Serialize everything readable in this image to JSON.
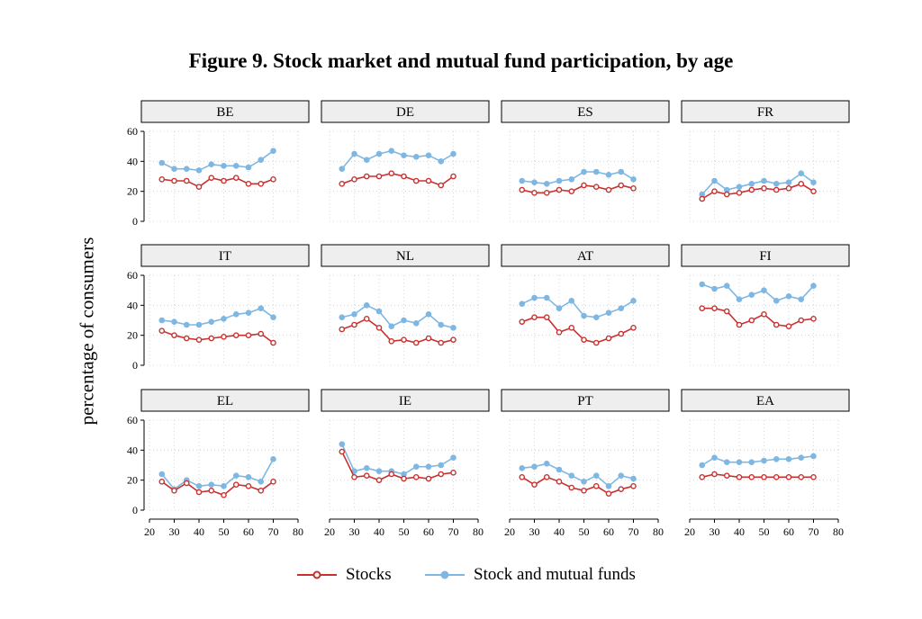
{
  "title": "Figure 9. Stock market and mutual fund participation, by age",
  "colors": {
    "stocks": "#c8312f",
    "funds": "#7fb7e3",
    "panel_header_bg": "#eeeeee",
    "grid": "#cccccc"
  },
  "chart_data": {
    "type": "line",
    "title": "Figure 9. Stock market and mutual fund participation, by age",
    "ylabel": "percentage of consumers",
    "xlabel": "",
    "xlim": [
      20,
      80
    ],
    "ylim": [
      0,
      60
    ],
    "x_ticks": [
      20,
      30,
      40,
      50,
      60,
      70,
      80
    ],
    "y_ticks": [
      0,
      20,
      40,
      60
    ],
    "grid": true,
    "legend": "bottom",
    "x": [
      25,
      30,
      35,
      40,
      45,
      50,
      55,
      60,
      65,
      70
    ],
    "series_names": [
      "Stocks",
      "Stock and mutual funds"
    ],
    "panels": [
      {
        "name": "BE",
        "stocks": [
          28,
          27,
          27,
          23,
          29,
          27,
          29,
          25,
          25,
          28
        ],
        "funds": [
          39,
          35,
          35,
          34,
          38,
          37,
          37,
          36,
          41,
          47
        ]
      },
      {
        "name": "DE",
        "stocks": [
          25,
          28,
          30,
          30,
          32,
          30,
          27,
          27,
          24,
          30
        ],
        "funds": [
          35,
          45,
          41,
          45,
          47,
          44,
          43,
          44,
          40,
          45
        ]
      },
      {
        "name": "ES",
        "stocks": [
          21,
          19,
          19,
          21,
          20,
          24,
          23,
          21,
          24,
          22
        ],
        "funds": [
          27,
          26,
          25,
          27,
          28,
          33,
          33,
          31,
          33,
          28
        ]
      },
      {
        "name": "FR",
        "stocks": [
          15,
          20,
          18,
          19,
          21,
          22,
          21,
          22,
          25,
          20
        ],
        "funds": [
          18,
          27,
          21,
          23,
          25,
          27,
          25,
          26,
          32,
          26
        ]
      },
      {
        "name": "IT",
        "stocks": [
          23,
          20,
          18,
          17,
          18,
          19,
          20,
          20,
          21,
          15
        ],
        "funds": [
          30,
          29,
          27,
          27,
          29,
          31,
          34,
          35,
          38,
          32
        ]
      },
      {
        "name": "NL",
        "stocks": [
          24,
          27,
          31,
          25,
          16,
          17,
          15,
          18,
          15,
          17
        ],
        "funds": [
          32,
          34,
          40,
          36,
          26,
          30,
          28,
          34,
          27,
          25
        ]
      },
      {
        "name": "AT",
        "stocks": [
          29,
          32,
          32,
          22,
          25,
          17,
          15,
          18,
          21,
          25
        ],
        "funds": [
          41,
          45,
          45,
          38,
          43,
          33,
          32,
          35,
          38,
          43
        ]
      },
      {
        "name": "FI",
        "stocks": [
          38,
          38,
          36,
          27,
          30,
          34,
          27,
          26,
          30,
          31
        ],
        "funds": [
          54,
          51,
          53,
          44,
          47,
          50,
          43,
          46,
          44,
          53
        ]
      },
      {
        "name": "EL",
        "stocks": [
          19,
          13,
          18,
          12,
          13,
          10,
          17,
          16,
          13,
          19
        ],
        "funds": [
          24,
          14,
          20,
          16,
          17,
          16,
          23,
          22,
          19,
          34
        ]
      },
      {
        "name": "IE",
        "stocks": [
          39,
          22,
          23,
          20,
          24,
          21,
          22,
          21,
          24,
          25
        ],
        "funds": [
          44,
          26,
          28,
          26,
          26,
          24,
          29,
          29,
          30,
          35
        ]
      },
      {
        "name": "PT",
        "stocks": [
          22,
          17,
          22,
          19,
          15,
          13,
          16,
          11,
          14,
          16
        ],
        "funds": [
          28,
          29,
          31,
          27,
          23,
          19,
          23,
          16,
          23,
          21
        ]
      },
      {
        "name": "EA",
        "stocks": [
          22,
          24,
          23,
          22,
          22,
          22,
          22,
          22,
          22,
          22
        ],
        "funds": [
          30,
          35,
          32,
          32,
          32,
          33,
          34,
          34,
          35,
          36
        ]
      }
    ]
  },
  "legend": {
    "stocks_label": "Stocks",
    "funds_label": "Stock and mutual funds"
  }
}
